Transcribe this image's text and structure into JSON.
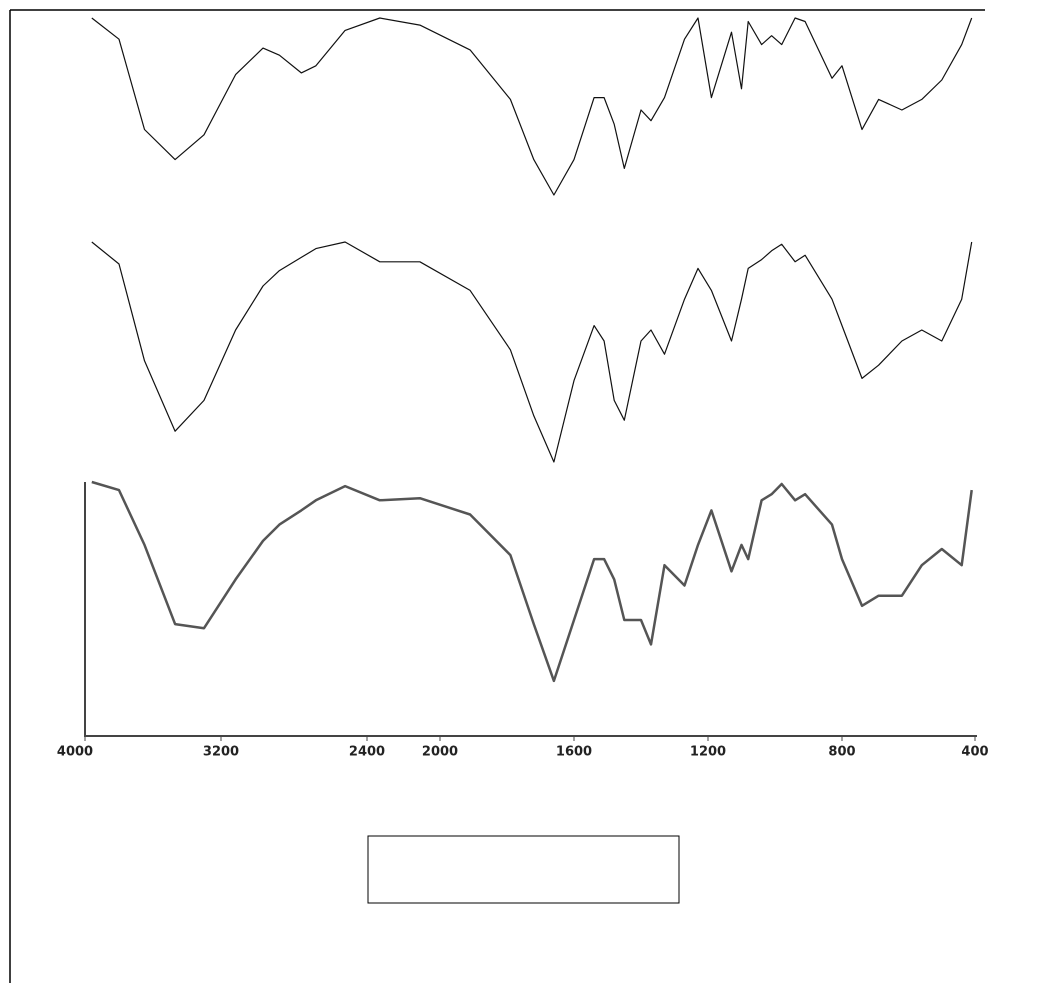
{
  "chart_data": [
    {
      "type": "line",
      "xlim": [
        4000,
        400
      ],
      "ylim": [
        0,
        100
      ],
      "x": [
        3960,
        3800,
        3650,
        3470,
        3300,
        3120,
        2970,
        2880,
        2760,
        2680,
        2520,
        2330,
        2110,
        1910,
        1790,
        1720,
        1660,
        1600,
        1540,
        1510,
        1480,
        1450,
        1400,
        1370,
        1330,
        1270,
        1230,
        1190,
        1130,
        1100,
        1080,
        1040,
        1010,
        980,
        940,
        910,
        830,
        800,
        740,
        690,
        620,
        560,
        500,
        440,
        410
      ],
      "series": [
        {
          "color": "#111111",
          "values": [
            100,
            88,
            37,
            20,
            34,
            68,
            83,
            79,
            69,
            73,
            93,
            100,
            96,
            82,
            54,
            20,
            0,
            20,
            55,
            55,
            40,
            15,
            48,
            42,
            55,
            88,
            100,
            55,
            92,
            60,
            98,
            85,
            90,
            85,
            100,
            98,
            66,
            73,
            37,
            54,
            48,
            54,
            65,
            85,
            100
          ]
        }
      ]
    },
    {
      "type": "line",
      "xlim": [
        4000,
        400
      ],
      "ylim": [
        0,
        100
      ],
      "x": [
        3960,
        3800,
        3650,
        3470,
        3300,
        3120,
        2970,
        2880,
        2760,
        2680,
        2520,
        2330,
        2110,
        1910,
        1790,
        1720,
        1660,
        1600,
        1540,
        1510,
        1480,
        1450,
        1400,
        1370,
        1330,
        1270,
        1230,
        1190,
        1130,
        1100,
        1080,
        1040,
        1010,
        980,
        940,
        910,
        830,
        800,
        740,
        690,
        620,
        560,
        500,
        440,
        410
      ],
      "series": [
        {
          "color": "#111111",
          "values": [
            100,
            90,
            46,
            14,
            28,
            60,
            80,
            87,
            93,
            97,
            100,
            91,
            91,
            78,
            51,
            21,
            0,
            37,
            62,
            55,
            28,
            19,
            55,
            60,
            49,
            74,
            88,
            78,
            55,
            74,
            88,
            92,
            96,
            99,
            91,
            94,
            74,
            62,
            38,
            44,
            55,
            60,
            55,
            74,
            100
          ]
        }
      ]
    },
    {
      "type": "line",
      "xlim": [
        4000,
        400
      ],
      "ylim": [
        0,
        100
      ],
      "xticks": [
        4000,
        3200,
        2400,
        2000,
        1600,
        1200,
        800,
        400
      ],
      "x": [
        3960,
        3800,
        3650,
        3470,
        3300,
        3120,
        2970,
        2880,
        2760,
        2680,
        2520,
        2330,
        2110,
        1910,
        1790,
        1720,
        1660,
        1600,
        1540,
        1510,
        1480,
        1450,
        1400,
        1370,
        1330,
        1270,
        1230,
        1190,
        1130,
        1100,
        1080,
        1040,
        1010,
        980,
        940,
        910,
        830,
        800,
        740,
        690,
        620,
        560,
        500,
        440,
        410
      ],
      "series": [
        {
          "color": "#555555",
          "values": [
            100,
            96,
            69,
            30,
            28,
            52,
            71,
            79,
            86,
            91,
            98,
            91,
            92,
            84,
            64,
            30,
            2,
            32,
            62,
            62,
            52,
            32,
            32,
            20,
            59,
            49,
            69,
            86,
            56,
            69,
            62,
            91,
            94,
            99,
            91,
            94,
            79,
            62,
            39,
            44,
            44,
            59,
            67,
            59,
            96
          ]
        }
      ]
    }
  ]
}
